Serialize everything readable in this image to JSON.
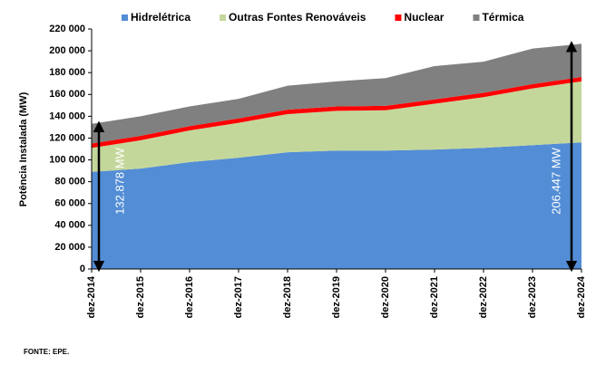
{
  "chart_data": {
    "type": "stacked_area",
    "y_label": "Potência Instalada (MW)",
    "categories": [
      "dez-2014",
      "dez-2015",
      "dez-2016",
      "dez-2017",
      "dez-2018",
      "dez-2019",
      "dez-2020",
      "dez-2021",
      "dez-2022",
      "dez-2023",
      "dez-2024"
    ],
    "series": [
      {
        "name": "Hidrelétrica",
        "color": "#538dd5",
        "values": [
          89000,
          92000,
          98000,
          102000,
          107000,
          108500,
          108500,
          109500,
          111000,
          113500,
          116000
        ]
      },
      {
        "name": "Outras Fontes Renováveis",
        "color": "#c4d79b",
        "values": [
          22000,
          26000,
          29000,
          32000,
          35000,
          36500,
          37000,
          42000,
          46500,
          52000,
          56000
        ]
      },
      {
        "name": "Nuclear",
        "color": "#ff0000",
        "values": [
          4000,
          4000,
          4000,
          4000,
          4000,
          4000,
          4000,
          4000,
          4000,
          4000,
          4000
        ]
      },
      {
        "name": "Térmica",
        "color": "#808080",
        "values": [
          18000,
          18000,
          18000,
          18000,
          22000,
          23000,
          25500,
          30500,
          28500,
          32500,
          30447
        ]
      }
    ],
    "ylim": [
      0,
      220000
    ],
    "yticks": [
      {
        "value": 0,
        "label": "0"
      },
      {
        "value": 20000,
        "label": "20 000"
      },
      {
        "value": 40000,
        "label": "40 000"
      },
      {
        "value": 60000,
        "label": "60 000"
      },
      {
        "value": 80000,
        "label": "80 000"
      },
      {
        "value": 100000,
        "label": "100 000"
      },
      {
        "value": 120000,
        "label": "120 000"
      },
      {
        "value": 140000,
        "label": "140 000"
      },
      {
        "value": 160000,
        "label": "160 000"
      },
      {
        "value": 180000,
        "label": "180 000"
      },
      {
        "value": 200000,
        "label": "200 000"
      },
      {
        "value": 220000,
        "label": "220 000"
      }
    ],
    "annotations": [
      "132.878 MW",
      "206.447 MW"
    ],
    "source": "FONTE: EPE."
  }
}
